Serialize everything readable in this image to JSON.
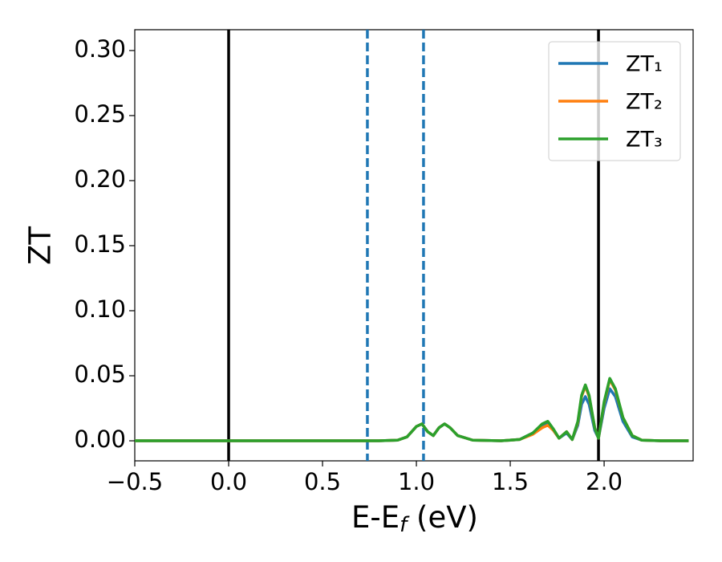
{
  "chart_data": {
    "type": "line",
    "xlabel": [
      "E-E",
      "f",
      " (eV)"
    ],
    "ylabel": "ZT",
    "x": [
      -0.5,
      0.8,
      0.9,
      0.95,
      1.0,
      1.03,
      1.06,
      1.09,
      1.12,
      1.15,
      1.18,
      1.22,
      1.3,
      1.45,
      1.55,
      1.62,
      1.67,
      1.7,
      1.73,
      1.76,
      1.8,
      1.83,
      1.86,
      1.88,
      1.9,
      1.92,
      1.95,
      1.97,
      2.0,
      2.03,
      2.06,
      2.1,
      2.15,
      2.2,
      2.3,
      2.45
    ],
    "series": [
      {
        "name": "ZT₁",
        "color": "#1f77b4",
        "values": [
          0,
          0,
          0.0005,
          0.003,
          0.011,
          0.013,
          0.007,
          0.004,
          0.01,
          0.013,
          0.01,
          0.004,
          0.0005,
          0,
          0.001,
          0.006,
          0.012,
          0.013,
          0.008,
          0.002,
          0.006,
          0.001,
          0.012,
          0.028,
          0.034,
          0.028,
          0.008,
          0.002,
          0.025,
          0.04,
          0.034,
          0.015,
          0.003,
          0.0005,
          0,
          0
        ]
      },
      {
        "name": "ZT₂",
        "color": "#ff7f0e",
        "values": [
          0,
          0,
          0.0005,
          0.003,
          0.011,
          0.013,
          0.007,
          0.004,
          0.01,
          0.013,
          0.01,
          0.004,
          0.0005,
          0,
          0.001,
          0.005,
          0.01,
          0.012,
          0.008,
          0.002,
          0.007,
          0.001,
          0.014,
          0.034,
          0.042,
          0.034,
          0.01,
          0.002,
          0.029,
          0.047,
          0.039,
          0.018,
          0.004,
          0.0005,
          0,
          0
        ]
      },
      {
        "name": "ZT₃",
        "color": "#2ca02c",
        "values": [
          0,
          0,
          0.0005,
          0.003,
          0.011,
          0.013,
          0.007,
          0.004,
          0.01,
          0.013,
          0.01,
          0.004,
          0.0005,
          0,
          0.001,
          0.006,
          0.013,
          0.015,
          0.009,
          0.002,
          0.007,
          0.001,
          0.015,
          0.035,
          0.043,
          0.035,
          0.01,
          0.002,
          0.03,
          0.048,
          0.04,
          0.018,
          0.004,
          0.0005,
          0,
          0
        ]
      }
    ],
    "vlines": [
      {
        "x": 0,
        "color": "#000000",
        "dashed": false
      },
      {
        "x": 1.97,
        "color": "#000000",
        "dashed": false
      },
      {
        "x": 0.739,
        "color": "#1f77b4",
        "dashed": true
      },
      {
        "x": 1.038,
        "color": "#1f77b4",
        "dashed": true
      }
    ],
    "xlim": [
      -0.5,
      2.474
    ],
    "ylim": [
      -0.0154,
      0.316
    ],
    "xticks": [
      {
        "value": -0.5,
        "label": "−0.5"
      },
      {
        "value": 0,
        "label": "0.0"
      },
      0.5,
      {
        "value": 1,
        "label": "1.0"
      },
      1.5,
      {
        "value": 2,
        "label": "2.0"
      }
    ],
    "yticks": [
      {
        "value": 0,
        "label": "0.00"
      },
      0.05,
      {
        "value": 0.1,
        "label": "0.10"
      },
      0.15,
      {
        "value": 0.2,
        "label": "0.20"
      },
      0.25,
      {
        "value": 0.3,
        "label": "0.30"
      }
    ],
    "grid": false,
    "legend": "upper right"
  }
}
